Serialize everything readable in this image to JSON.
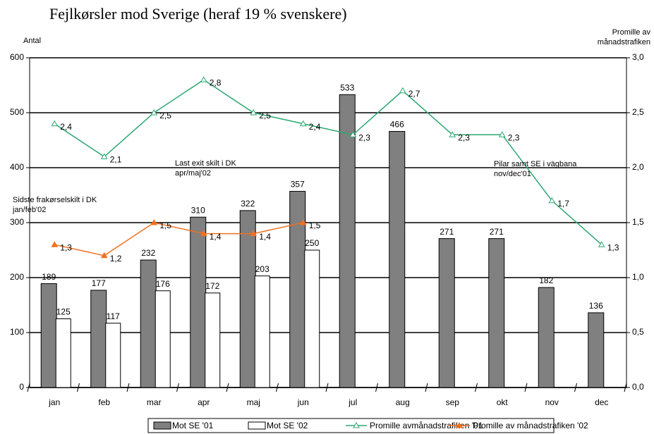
{
  "chart_data": {
    "type": "bar-line",
    "title": "Fejlkørsler mod Sverige (heraf 19 % svenskere)",
    "ylabel": "Antal",
    "y2label": "Promille av\nmånadstrafiken",
    "categories": [
      "jan",
      "feb",
      "mar",
      "apr",
      "maj",
      "jun",
      "jul",
      "aug",
      "sep",
      "okt",
      "nov",
      "dec"
    ],
    "series": [
      {
        "name": "Mot SE '01",
        "kind": "bar",
        "color": "#808080",
        "values": [
          189,
          177,
          232,
          310,
          322,
          357,
          533,
          466,
          271,
          271,
          182,
          136
        ]
      },
      {
        "name": "Mot SE '02",
        "kind": "bar",
        "color": "#ffffff",
        "values": [
          125,
          117,
          176,
          172,
          203,
          250,
          null,
          null,
          null,
          null,
          null,
          null
        ]
      },
      {
        "name": "Promille avmånadstrafiken '01",
        "kind": "line",
        "axis": "y2",
        "color": "#2ca870",
        "values": [
          2.4,
          2.1,
          2.5,
          2.8,
          2.5,
          2.4,
          2.3,
          2.7,
          2.3,
          2.3,
          1.7,
          1.3
        ],
        "value_labels": [
          "2,4",
          "2,1",
          "2,5",
          "2,8",
          "2,5",
          "2,4",
          "2,3",
          "2,7",
          "2,3",
          "2,3",
          "1,7",
          "1,3"
        ]
      },
      {
        "name": "Promille av månadstrafiken '02",
        "kind": "line",
        "axis": "y2",
        "color": "#f07020",
        "values": [
          1.3,
          1.2,
          1.5,
          1.4,
          1.4,
          1.5,
          null,
          null,
          null,
          null,
          null,
          null
        ],
        "value_labels": [
          "1,3",
          "1,2",
          "1,5",
          "1,4",
          "1,4",
          "1,5",
          null,
          null,
          null,
          null,
          null,
          null
        ]
      }
    ],
    "ylim": [
      0,
      600
    ],
    "yticks": [
      0,
      100,
      200,
      300,
      400,
      500,
      600
    ],
    "y2lim": [
      0,
      3
    ],
    "y2ticks": [
      {
        "value": 0,
        "label": "0,0"
      },
      {
        "value": 0.5,
        "label": "0,5"
      },
      {
        "value": 1,
        "label": "1,0"
      },
      {
        "value": 1.5,
        "label": "1,5"
      },
      {
        "value": 2,
        "label": "2,0"
      },
      {
        "value": 2.5,
        "label": "2,5"
      },
      {
        "value": 3,
        "label": "3,0"
      }
    ],
    "grid": true,
    "legend": "bottom",
    "annotations": [
      {
        "text": "Sidste frakørselskilt i DK\njan/feb'02"
      },
      {
        "text": "Last exit skilt i DK\napr/maj'02"
      },
      {
        "text": "Pilar samt SE i vägbana\nnov/dec'01"
      }
    ]
  }
}
